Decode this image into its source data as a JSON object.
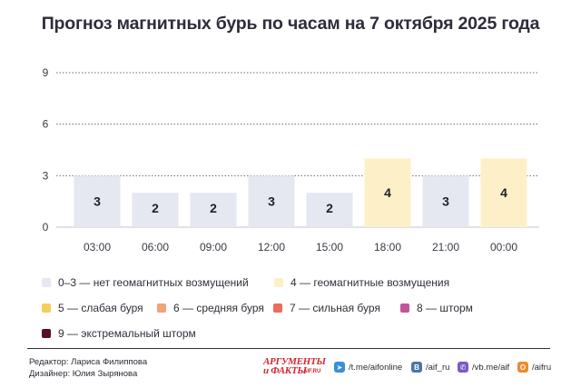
{
  "title": "Прогноз магнитных бурь по часам на 7 октября 2025 года",
  "chart_data": {
    "type": "bar",
    "categories": [
      "03:00",
      "06:00",
      "09:00",
      "12:00",
      "15:00",
      "18:00",
      "21:00",
      "00:00"
    ],
    "values": [
      3,
      2,
      2,
      3,
      2,
      4,
      3,
      4
    ],
    "ylim": [
      0,
      9
    ],
    "yticks": [
      0,
      3,
      6,
      9
    ],
    "grid": true,
    "xlabel": "",
    "ylabel": ""
  },
  "colors": {
    "quiet": "#e5e7f1",
    "disturbed": "#fdf0c9",
    "weak": "#f3cf5b",
    "medium": "#f0a374",
    "strong": "#ea6c5b",
    "storm": "#c0559b",
    "extreme": "#5a0d2a"
  },
  "legend": [
    {
      "label": "0–3 — нет геомагнитных возмущений",
      "color": "#e5e7f1"
    },
    {
      "label": "4 — геомагнитные возмущения",
      "color": "#fdf0c9"
    },
    {
      "label": "5 — слабая буря",
      "color": "#f3cf5b"
    },
    {
      "label": "6 — средняя буря",
      "color": "#f0a374"
    },
    {
      "label": "7 — сильная буря",
      "color": "#ea6c5b"
    },
    {
      "label": "8 — шторм",
      "color": "#c0559b"
    },
    {
      "label": "9 — экстремальный шторм",
      "color": "#5a0d2a"
    }
  ],
  "credits": {
    "editor": "Редактор: Лариса Филиппова",
    "designer": "Дизайнер: Юлия Зырянова"
  },
  "logo": {
    "line1": "АРГУМЕНТЫ",
    "line2": "и ФАКТЫ",
    "domain": "AIF.RU"
  },
  "social": [
    {
      "text": "/t.me/aifonline",
      "icon": "telegram-icon",
      "color": "#3c8fd6",
      "glyph": "➤"
    },
    {
      "text": "/aif_ru",
      "icon": "vk-icon",
      "color": "#4a76a8",
      "glyph": "В"
    },
    {
      "text": "/vb.me/aif",
      "icon": "viber-icon",
      "color": "#7b59c6",
      "glyph": "✆"
    },
    {
      "text": "/aifru",
      "icon": "ok-icon",
      "color": "#f08a2a",
      "glyph": "О"
    }
  ]
}
